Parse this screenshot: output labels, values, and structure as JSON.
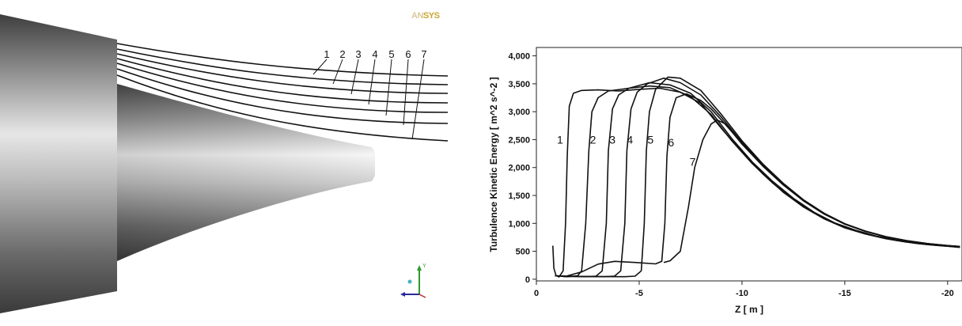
{
  "left_figure": {
    "logo": {
      "prefix": "AN",
      "suffix": "SYS"
    },
    "streamline_labels": [
      "1",
      "2",
      "3",
      "4",
      "5",
      "6",
      "7"
    ],
    "axis_triad_label": "Y"
  },
  "chart_data": {
    "type": "line",
    "title": "",
    "xlabel": "Z [ m ]",
    "ylabel": "Turbulence Kinetic Energy [ m^2 s^-2 ]",
    "xlim": [
      0,
      -20.7
    ],
    "ylim": [
      -30,
      4150
    ],
    "x_ticks": [
      0,
      -5,
      -10,
      -15,
      -20
    ],
    "x_tick_labels": [
      "0",
      "-5",
      "-10",
      "-15",
      "-20"
    ],
    "y_ticks": [
      0,
      500,
      1000,
      1500,
      2000,
      2500,
      3000,
      3500,
      4000
    ],
    "y_tick_labels": [
      "0",
      "500",
      "1,000",
      "1,500",
      "2,000",
      "2,500",
      "3,000",
      "3,500",
      "4,000"
    ],
    "grid": false,
    "legend": "curve numbers placed next to each curve",
    "series": [
      {
        "name": "1",
        "label_at": [
          -1.15,
          2500
        ],
        "points": [
          [
            -0.8,
            600
          ],
          [
            -0.85,
            200
          ],
          [
            -0.95,
            70
          ],
          [
            -1.1,
            40
          ],
          [
            -1.3,
            150
          ],
          [
            -1.42,
            1000
          ],
          [
            -1.5,
            2200
          ],
          [
            -1.6,
            3100
          ],
          [
            -1.8,
            3330
          ],
          [
            -2.2,
            3380
          ],
          [
            -3,
            3390
          ],
          [
            -4,
            3370
          ],
          [
            -5,
            3400
          ],
          [
            -6,
            3420
          ],
          [
            -7,
            3350
          ],
          [
            -8,
            3150
          ],
          [
            -9,
            2700
          ],
          [
            -10,
            2280
          ],
          [
            -11,
            1890
          ],
          [
            -12,
            1560
          ],
          [
            -13,
            1290
          ],
          [
            -14,
            1080
          ],
          [
            -15,
            920
          ],
          [
            -16,
            810
          ],
          [
            -17,
            725
          ],
          [
            -18,
            665
          ],
          [
            -19,
            620
          ],
          [
            -20,
            590
          ],
          [
            -20.6,
            570
          ]
        ]
      },
      {
        "name": "2",
        "label_at": [
          -2.75,
          2500
        ],
        "points": [
          [
            -0.9,
            60
          ],
          [
            -1.5,
            45
          ],
          [
            -2,
            60
          ],
          [
            -2.2,
            150
          ],
          [
            -2.4,
            1000
          ],
          [
            -2.55,
            2300
          ],
          [
            -2.7,
            3000
          ],
          [
            -3,
            3250
          ],
          [
            -3.5,
            3370
          ],
          [
            -4.5,
            3420
          ],
          [
            -5.5,
            3460
          ],
          [
            -6.5,
            3430
          ],
          [
            -7.5,
            3270
          ],
          [
            -8.5,
            2950
          ],
          [
            -9.5,
            2480
          ],
          [
            -10.5,
            2070
          ],
          [
            -11.5,
            1720
          ],
          [
            -12.5,
            1430
          ],
          [
            -13.5,
            1190
          ],
          [
            -14.5,
            1000
          ],
          [
            -15.5,
            870
          ],
          [
            -16.5,
            770
          ],
          [
            -17.5,
            695
          ],
          [
            -18.5,
            640
          ],
          [
            -19.5,
            605
          ],
          [
            -20.6,
            575
          ]
        ]
      },
      {
        "name": "3",
        "label_at": [
          -3.7,
          2500
        ],
        "points": [
          [
            -1,
            60
          ],
          [
            -2.4,
            45
          ],
          [
            -2.9,
            55
          ],
          [
            -3.2,
            150
          ],
          [
            -3.4,
            1000
          ],
          [
            -3.5,
            2300
          ],
          [
            -3.7,
            3050
          ],
          [
            -4,
            3300
          ],
          [
            -4.5,
            3420
          ],
          [
            -5.5,
            3520
          ],
          [
            -6.5,
            3480
          ],
          [
            -7.5,
            3330
          ],
          [
            -8.5,
            3000
          ],
          [
            -9.5,
            2520
          ],
          [
            -10.5,
            2100
          ],
          [
            -11.5,
            1750
          ],
          [
            -12.5,
            1450
          ],
          [
            -13.5,
            1200
          ],
          [
            -14.5,
            1010
          ],
          [
            -15.5,
            880
          ],
          [
            -16.5,
            775
          ],
          [
            -17.5,
            700
          ],
          [
            -18.5,
            645
          ],
          [
            -19.5,
            608
          ],
          [
            -20.6,
            578
          ]
        ]
      },
      {
        "name": "4",
        "label_at": [
          -4.55,
          2500
        ],
        "points": [
          [
            -1.2,
            55
          ],
          [
            -3.3,
            45
          ],
          [
            -3.8,
            55
          ],
          [
            -4.1,
            150
          ],
          [
            -4.3,
            1000
          ],
          [
            -4.4,
            2300
          ],
          [
            -4.6,
            3050
          ],
          [
            -4.9,
            3350
          ],
          [
            -5.4,
            3500
          ],
          [
            -6.2,
            3600
          ],
          [
            -7,
            3520
          ],
          [
            -8,
            3300
          ],
          [
            -9,
            2900
          ],
          [
            -10,
            2450
          ],
          [
            -11,
            2050
          ],
          [
            -12,
            1700
          ],
          [
            -13,
            1410
          ],
          [
            -14,
            1170
          ],
          [
            -15,
            990
          ],
          [
            -16,
            860
          ],
          [
            -17,
            760
          ],
          [
            -18,
            690
          ],
          [
            -19,
            638
          ],
          [
            -20,
            602
          ],
          [
            -20.6,
            585
          ]
        ]
      },
      {
        "name": "5",
        "label_at": [
          -5.55,
          2500
        ],
        "points": [
          [
            -1.3,
            50
          ],
          [
            -4.3,
            45
          ],
          [
            -4.8,
            55
          ],
          [
            -5.1,
            150
          ],
          [
            -5.25,
            1000
          ],
          [
            -5.35,
            2300
          ],
          [
            -5.5,
            3000
          ],
          [
            -5.8,
            3400
          ],
          [
            -6.4,
            3620
          ],
          [
            -7,
            3600
          ],
          [
            -8,
            3380
          ],
          [
            -9,
            2950
          ],
          [
            -10,
            2480
          ],
          [
            -11,
            2070
          ],
          [
            -12,
            1720
          ],
          [
            -13,
            1420
          ],
          [
            -14,
            1180
          ],
          [
            -15,
            995
          ],
          [
            -16,
            862
          ],
          [
            -17,
            762
          ],
          [
            -18,
            692
          ],
          [
            -19,
            640
          ],
          [
            -20,
            604
          ],
          [
            -20.6,
            588
          ]
        ]
      },
      {
        "name": "6",
        "label_at": [
          -6.55,
          2450
        ],
        "points": [
          [
            -1.5,
            60
          ],
          [
            -2.2,
            130
          ],
          [
            -3,
            270
          ],
          [
            -3.8,
            320
          ],
          [
            -4.8,
            300
          ],
          [
            -5.8,
            275
          ],
          [
            -6.1,
            320
          ],
          [
            -6.25,
            1000
          ],
          [
            -6.35,
            2200
          ],
          [
            -6.5,
            2900
          ],
          [
            -6.8,
            3250
          ],
          [
            -7.3,
            3320
          ],
          [
            -8,
            3200
          ],
          [
            -8.5,
            3050
          ],
          [
            -9,
            2850
          ],
          [
            -10,
            2440
          ],
          [
            -11,
            2050
          ],
          [
            -12,
            1700
          ],
          [
            -13,
            1410
          ],
          [
            -14,
            1170
          ],
          [
            -15,
            990
          ],
          [
            -16,
            860
          ],
          [
            -17,
            760
          ],
          [
            -18,
            690
          ],
          [
            -19,
            638
          ],
          [
            -20,
            602
          ],
          [
            -20.6,
            586
          ]
        ]
      },
      {
        "name": "7",
        "label_at": [
          -7.6,
          2100
        ],
        "points": [
          [
            -6.2,
            300
          ],
          [
            -6.5,
            330
          ],
          [
            -7,
            500
          ],
          [
            -7.4,
            1300
          ],
          [
            -7.7,
            2000
          ],
          [
            -8.1,
            2500
          ],
          [
            -8.5,
            2780
          ],
          [
            -8.8,
            2850
          ],
          [
            -9.2,
            2780
          ],
          [
            -10,
            2420
          ],
          [
            -11,
            2030
          ],
          [
            -12,
            1690
          ],
          [
            -13,
            1400
          ],
          [
            -14,
            1165
          ],
          [
            -15,
            985
          ],
          [
            -16,
            855
          ],
          [
            -17,
            757
          ],
          [
            -18,
            688
          ],
          [
            -19,
            636
          ],
          [
            -20,
            600
          ],
          [
            -20.6,
            584
          ]
        ]
      }
    ]
  }
}
